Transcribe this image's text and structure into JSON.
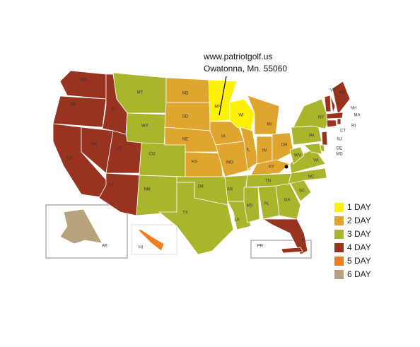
{
  "annotation": {
    "line1": "www.patriotgolf.us",
    "line2": "Owatonna, Mn. 55060"
  },
  "legend": [
    {
      "label": "1 DAY",
      "color": "#fff200"
    },
    {
      "label": "2 DAY",
      "color": "#dfa52e"
    },
    {
      "label": "3 DAY",
      "color": "#a9b62b"
    },
    {
      "label": "4 DAY",
      "color": "#98331f"
    },
    {
      "label": "5 DAY",
      "color": "#f07d1e"
    },
    {
      "label": "6 DAY",
      "color": "#b6a27c"
    }
  ],
  "states": [
    {
      "label": "WA",
      "color": "#98331f"
    },
    {
      "label": "OR",
      "color": "#98331f"
    },
    {
      "label": "CA",
      "color": "#98331f"
    },
    {
      "label": "NV",
      "color": "#98331f"
    },
    {
      "label": "ID",
      "color": "#98331f"
    },
    {
      "label": "MT",
      "color": "#a9b62b"
    },
    {
      "label": "WY",
      "color": "#a9b62b"
    },
    {
      "label": "UT",
      "color": "#98331f"
    },
    {
      "label": "CO",
      "color": "#a9b62b"
    },
    {
      "label": "AZ",
      "color": "#98331f"
    },
    {
      "label": "NM",
      "color": "#a9b62b"
    },
    {
      "label": "ND",
      "color": "#dfa52e"
    },
    {
      "label": "SD",
      "color": "#dfa52e"
    },
    {
      "label": "NE",
      "color": "#dfa52e"
    },
    {
      "label": "KS",
      "color": "#dfa52e"
    },
    {
      "label": "OK",
      "color": "#a9b62b"
    },
    {
      "label": "TX",
      "color": "#a9b62b"
    },
    {
      "label": "MN",
      "color": "#fff200"
    },
    {
      "label": "IA",
      "color": "#dfa52e"
    },
    {
      "label": "MO",
      "color": "#dfa52e"
    },
    {
      "label": "AR",
      "color": "#a9b62b"
    },
    {
      "label": "LA",
      "color": "#a9b62b"
    },
    {
      "label": "WI",
      "color": "#fff200"
    },
    {
      "label": "IL",
      "color": "#dfa52e"
    },
    {
      "label": "MI",
      "color": "#dfa52e"
    },
    {
      "label": "IN",
      "color": "#dfa52e"
    },
    {
      "label": "OH",
      "color": "#dfa52e"
    },
    {
      "label": "KY",
      "color": "#dfa52e"
    },
    {
      "label": "TN",
      "color": "#a9b62b"
    },
    {
      "label": "MS",
      "color": "#a9b62b"
    },
    {
      "label": "AL",
      "color": "#a9b62b"
    },
    {
      "label": "GA",
      "color": "#a9b62b"
    },
    {
      "label": "FL",
      "color": "#98331f"
    },
    {
      "label": "SC",
      "color": "#a9b62b"
    },
    {
      "label": "NC",
      "color": "#a9b62b"
    },
    {
      "label": "VA",
      "color": "#a9b62b"
    },
    {
      "label": "WV",
      "color": "#a9b62b"
    },
    {
      "label": "PA",
      "color": "#a9b62b"
    },
    {
      "label": "NY",
      "color": "#a9b62b"
    },
    {
      "label": "ME",
      "color": "#98331f"
    },
    {
      "label": "VT",
      "color": "#98331f"
    },
    {
      "label": "NH",
      "color": "#98331f"
    },
    {
      "label": "MA",
      "color": "#98331f"
    },
    {
      "label": "CT",
      "color": "#98331f"
    },
    {
      "label": "RI",
      "color": "#98331f"
    },
    {
      "label": "NJ",
      "color": "#98331f"
    },
    {
      "label": "DE",
      "color": "#a9b62b"
    },
    {
      "label": "MD",
      "color": "#a9b62b"
    },
    {
      "label": "AK",
      "color": "#b6a27c"
    },
    {
      "label": "HI",
      "color": "#f07d1e"
    },
    {
      "label": "PR",
      "color": "#98331f"
    }
  ]
}
